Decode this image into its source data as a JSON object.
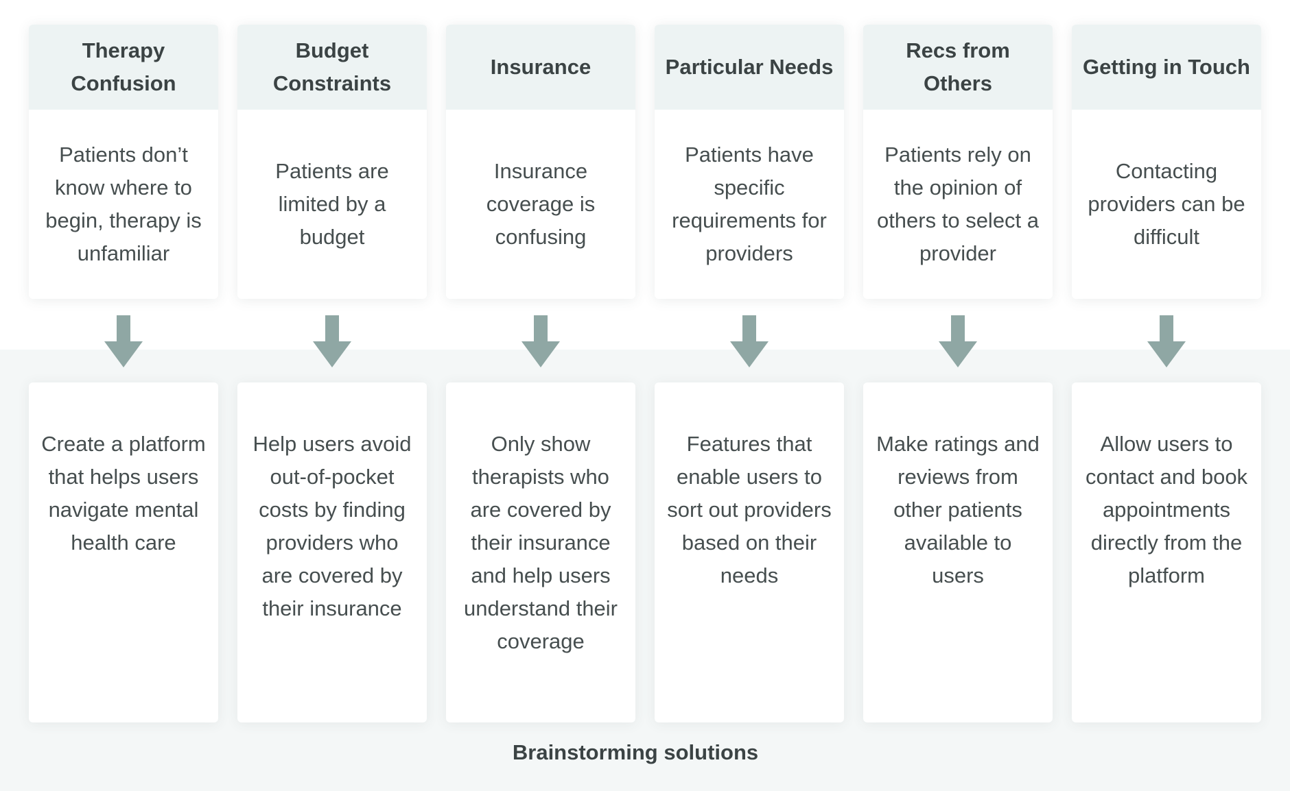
{
  "colors": {
    "header_bg": "#edf3f3",
    "band_bg": "#f4f7f7",
    "arrow": "#8fa7a4",
    "text": "#464e4f"
  },
  "columns": [
    {
      "title": "Therapy Confusion",
      "problem": "Patients don’t know where to begin, therapy is unfamiliar",
      "solution": "Create a platform that helps users navigate mental health care"
    },
    {
      "title": "Budget Constraints",
      "problem": "Patients are limited by a budget",
      "solution": "Help users avoid out-of-pocket costs by finding providers who are covered by their insurance"
    },
    {
      "title": "Insurance",
      "problem": "Insurance coverage is confusing",
      "solution": "Only show therapists who are covered by their insurance and help users understand their coverage"
    },
    {
      "title": "Particular Needs",
      "problem": "Patients have specific requirements for providers",
      "solution": "Features that enable users to sort out providers based on their needs"
    },
    {
      "title": "Recs from Others",
      "problem": "Patients rely on the opinion of others to select a provider",
      "solution": "Make ratings and reviews from other patients available to users"
    },
    {
      "title": "Getting in Touch",
      "problem": "Contacting providers can be difficult",
      "solution": "Allow users to contact and book appointments directly from the platform"
    }
  ],
  "band_label": "Brainstorming solutions",
  "arrow_icon": "arrow-down-icon"
}
